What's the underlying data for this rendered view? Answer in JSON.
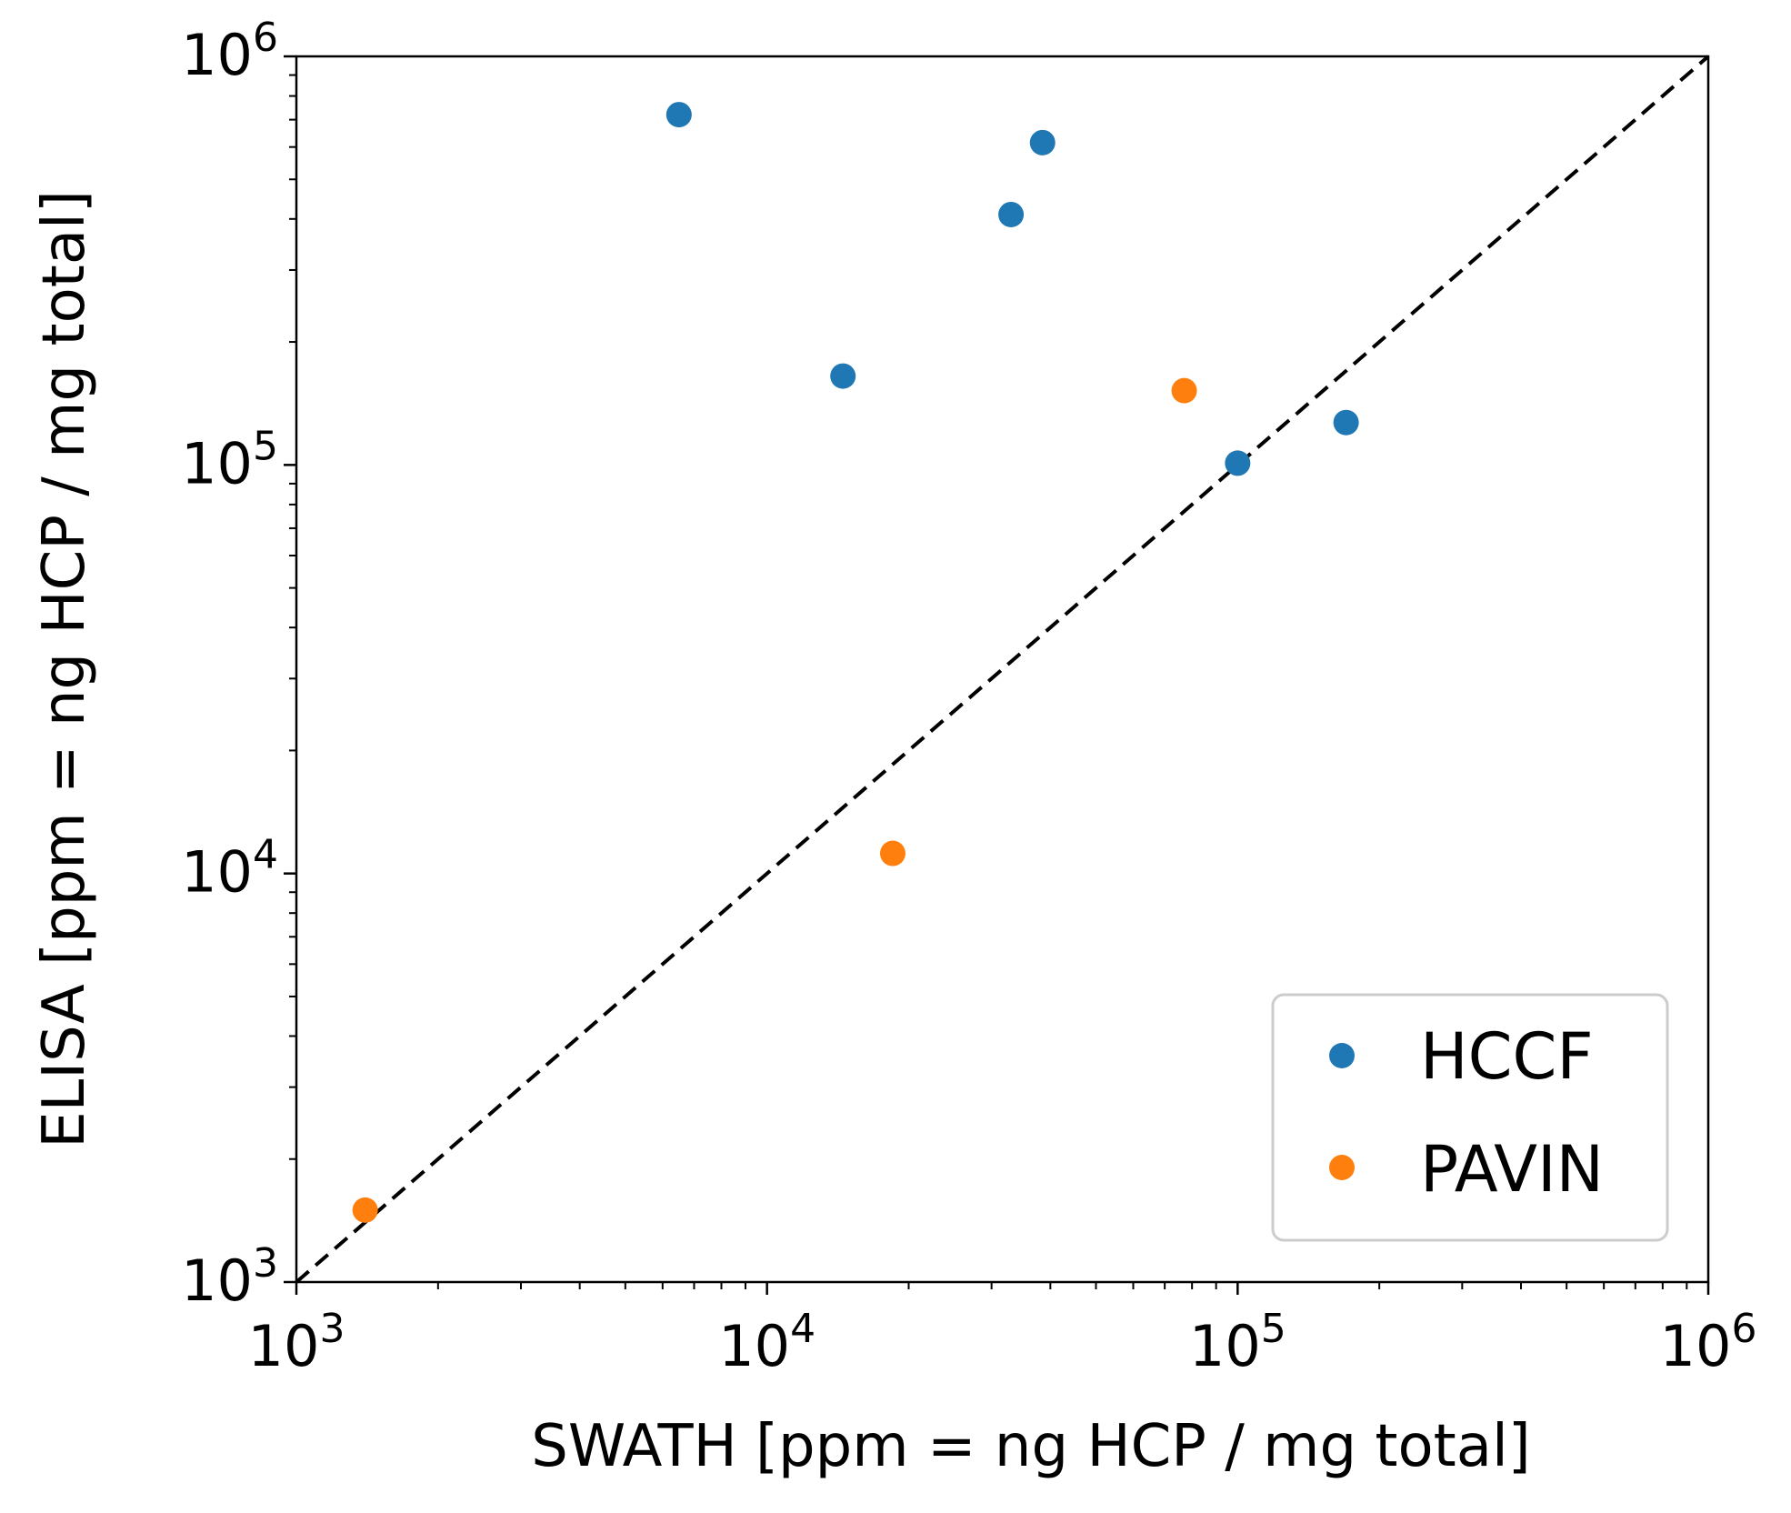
{
  "chart_data": {
    "type": "scatter",
    "title": "",
    "xlabel": "SWATH [ppm = ng HCP / mg total]",
    "ylabel": "ELISA [ppm = ng HCP / mg total]",
    "xscale": "log",
    "yscale": "log",
    "xlim": [
      1000,
      1000000
    ],
    "ylim": [
      1000,
      1000000
    ],
    "x_ticks": [
      {
        "value": 1000,
        "base": "10",
        "exp": "3"
      },
      {
        "value": 10000,
        "base": "10",
        "exp": "4"
      },
      {
        "value": 100000,
        "base": "10",
        "exp": "5"
      },
      {
        "value": 1000000,
        "base": "10",
        "exp": "6"
      }
    ],
    "y_ticks": [
      {
        "value": 1000,
        "base": "10",
        "exp": "3"
      },
      {
        "value": 10000,
        "base": "10",
        "exp": "4"
      },
      {
        "value": 100000,
        "base": "10",
        "exp": "5"
      },
      {
        "value": 1000000,
        "base": "10",
        "exp": "6"
      }
    ],
    "series": [
      {
        "name": "HCCF",
        "color": "#1f77b4",
        "points": [
          {
            "x": 6500,
            "y": 720000
          },
          {
            "x": 14500,
            "y": 165000
          },
          {
            "x": 33000,
            "y": 410000
          },
          {
            "x": 38500,
            "y": 615000
          },
          {
            "x": 100000,
            "y": 101000
          },
          {
            "x": 170000,
            "y": 127000
          }
        ]
      },
      {
        "name": "PAVIN",
        "color": "#ff7f0e",
        "points": [
          {
            "x": 1400,
            "y": 1500
          },
          {
            "x": 18500,
            "y": 11200
          },
          {
            "x": 77000,
            "y": 152000
          }
        ]
      }
    ],
    "reference_line": {
      "style": "dashed",
      "color": "#000000",
      "from": [
        1000,
        1000
      ],
      "to": [
        1000000,
        1000000
      ]
    },
    "grid": false,
    "legend_position": "lower-right"
  }
}
